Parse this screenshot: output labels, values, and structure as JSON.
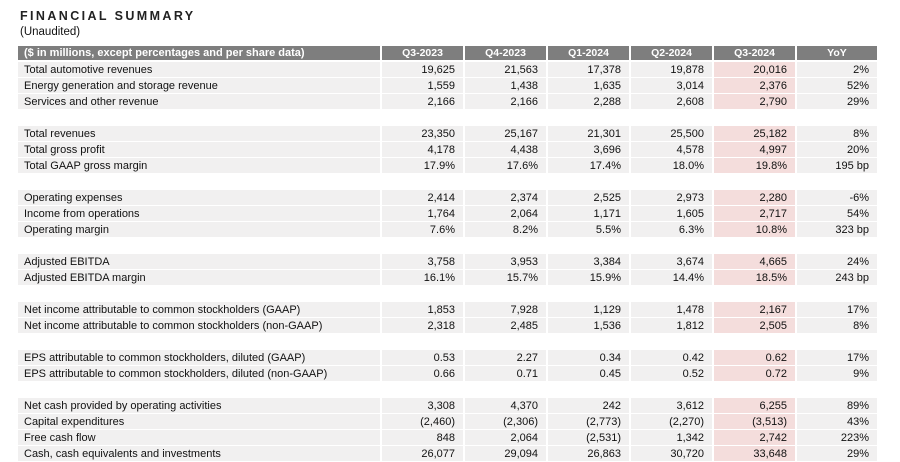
{
  "title": "FINANCIAL SUMMARY",
  "subtitle": "(Unaudited)",
  "colors": {
    "header_bg": "#7e7e7e",
    "header_text": "#ffffff",
    "row_bg": "#f1f0f0",
    "highlight_bg": "#f4dddc",
    "text": "#111111"
  },
  "table": {
    "header_label": "($ in millions, except percentages and per share data)",
    "columns": [
      "Q3-2023",
      "Q4-2023",
      "Q1-2024",
      "Q2-2024",
      "Q3-2024",
      "YoY"
    ],
    "highlight_column": "Q3-2024",
    "highlight_column_index": 4,
    "sections": [
      {
        "rows": [
          {
            "label": "Total automotive revenues",
            "values": [
              "19,625",
              "21,563",
              "17,378",
              "19,878",
              "20,016",
              "2%"
            ]
          },
          {
            "label": "Energy generation and storage revenue",
            "values": [
              "1,559",
              "1,438",
              "1,635",
              "3,014",
              "2,376",
              "52%"
            ]
          },
          {
            "label": "Services and other revenue",
            "values": [
              "2,166",
              "2,166",
              "2,288",
              "2,608",
              "2,790",
              "29%"
            ]
          }
        ]
      },
      {
        "rows": [
          {
            "label": "Total revenues",
            "values": [
              "23,350",
              "25,167",
              "21,301",
              "25,500",
              "25,182",
              "8%"
            ]
          },
          {
            "label": "Total gross profit",
            "values": [
              "4,178",
              "4,438",
              "3,696",
              "4,578",
              "4,997",
              "20%"
            ]
          },
          {
            "label": "Total GAAP gross margin",
            "values": [
              "17.9%",
              "17.6%",
              "17.4%",
              "18.0%",
              "19.8%",
              "195 bp"
            ]
          }
        ]
      },
      {
        "rows": [
          {
            "label": "Operating expenses",
            "values": [
              "2,414",
              "2,374",
              "2,525",
              "2,973",
              "2,280",
              "-6%"
            ]
          },
          {
            "label": "Income from operations",
            "values": [
              "1,764",
              "2,064",
              "1,171",
              "1,605",
              "2,717",
              "54%"
            ]
          },
          {
            "label": "Operating margin",
            "values": [
              "7.6%",
              "8.2%",
              "5.5%",
              "6.3%",
              "10.8%",
              "323 bp"
            ]
          }
        ]
      },
      {
        "rows": [
          {
            "label": "Adjusted EBITDA",
            "values": [
              "3,758",
              "3,953",
              "3,384",
              "3,674",
              "4,665",
              "24%"
            ]
          },
          {
            "label": "Adjusted EBITDA margin",
            "values": [
              "16.1%",
              "15.7%",
              "15.9%",
              "14.4%",
              "18.5%",
              "243 bp"
            ]
          }
        ]
      },
      {
        "rows": [
          {
            "label": "Net income attributable to common stockholders (GAAP)",
            "values": [
              "1,853",
              "7,928",
              "1,129",
              "1,478",
              "2,167",
              "17%"
            ]
          },
          {
            "label": "Net income attributable to common stockholders (non-GAAP)",
            "values": [
              "2,318",
              "2,485",
              "1,536",
              "1,812",
              "2,505",
              "8%"
            ]
          }
        ]
      },
      {
        "rows": [
          {
            "label": "EPS attributable to common stockholders, diluted (GAAP)",
            "values": [
              "0.53",
              "2.27",
              "0.34",
              "0.42",
              "0.62",
              "17%"
            ]
          },
          {
            "label": "EPS attributable to common stockholders, diluted (non-GAAP)",
            "values": [
              "0.66",
              "0.71",
              "0.45",
              "0.52",
              "0.72",
              "9%"
            ]
          }
        ]
      },
      {
        "rows": [
          {
            "label": "Net cash provided by operating activities",
            "values": [
              "3,308",
              "4,370",
              "242",
              "3,612",
              "6,255",
              "89%"
            ]
          },
          {
            "label": "Capital expenditures",
            "values": [
              "(2,460)",
              "(2,306)",
              "(2,773)",
              "(2,270)",
              "(3,513)",
              "43%"
            ]
          },
          {
            "label": "Free cash flow",
            "values": [
              "848",
              "2,064",
              "(2,531)",
              "1,342",
              "2,742",
              "223%"
            ]
          },
          {
            "label": "Cash, cash equivalents and investments",
            "values": [
              "26,077",
              "29,094",
              "26,863",
              "30,720",
              "33,648",
              "29%"
            ]
          }
        ]
      }
    ]
  }
}
